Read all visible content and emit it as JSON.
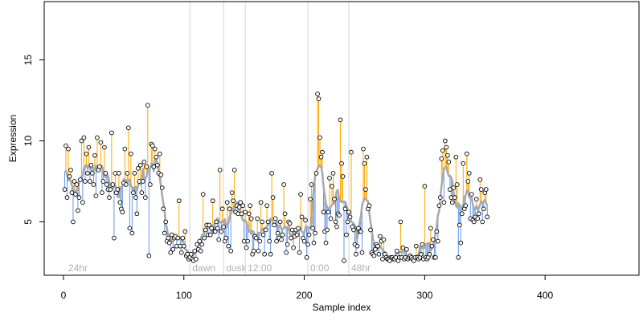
{
  "chart_data": {
    "type": "scatter",
    "title": "",
    "xlabel": "Sample index",
    "ylabel": "Expression",
    "xlim": [
      -16,
      478
    ],
    "ylim": [
      1.7,
      18.6
    ],
    "x_ticks": [
      0,
      100,
      200,
      300,
      400
    ],
    "y_ticks": [
      5,
      10,
      15
    ],
    "grid": false,
    "legend": "none",
    "phase_markers": [
      {
        "x": 2,
        "label": "24hr"
      },
      {
        "x": 105,
        "label": "dawn"
      },
      {
        "x": 133,
        "label": "dusk"
      },
      {
        "x": 151,
        "label": "12:00"
      },
      {
        "x": 203,
        "label": "0:00"
      },
      {
        "x": 237,
        "label": "48hr"
      }
    ],
    "colors": {
      "points": "#000000",
      "fitted_line": "#a9a9a9",
      "residual_above": "#ffa500",
      "residual_below": "#6495ed",
      "phase_line": "#d3d3d3",
      "phase_label": "#b0b0b0"
    },
    "series": [
      {
        "name": "",
        "values": [
          7.0,
          9.7,
          6.5,
          9.5,
          7.8,
          8.2,
          6.8,
          5.0,
          7.5,
          6.7,
          7.3,
          5.7,
          6.5,
          7.6,
          10.0,
          6.2,
          10.2,
          7.5,
          9.2,
          8.0,
          9.6,
          7.5,
          8.5,
          8.0,
          7.3,
          9.1,
          6.6,
          10.2,
          8.2,
          8.4,
          9.9,
          6.8,
          7.5,
          9.6,
          8.0,
          7.3,
          7.0,
          6.5,
          7.0,
          10.5,
          7.3,
          4.0,
          8.0,
          6.8,
          7.0,
          8.0,
          6.2,
          5.8,
          5.6,
          7.4,
          9.5,
          7.3,
          8.0,
          10.8,
          4.6,
          9.2,
          4.3,
          6.8,
          8.0,
          6.5,
          5.5,
          8.3,
          7.5,
          8.5,
          6.8,
          7.5,
          8.7,
          6.5,
          8.4,
          12.2,
          2.9,
          7.3,
          9.8,
          9.7,
          8.4,
          9.5,
          9.0,
          8.5,
          8.0,
          9.2,
          7.9,
          7.1,
          5.8,
          4.3,
          5.0,
          3.8,
          4.0,
          3.7,
          3.1,
          4.2,
          3.3,
          4.0,
          4.1,
          3.5,
          4.0,
          6.3,
          3.5,
          3.1,
          4.0,
          3.5,
          4.4,
          2.9,
          3.0,
          2.7,
          2.8,
          3.0,
          2.7,
          2.6,
          3.2,
          2.7,
          3.6,
          3.3,
          3.8,
          3.2,
          3.6,
          6.7,
          4.0,
          4.5,
          4.8,
          4.2,
          4.8,
          4.2,
          4.6,
          6.3,
          4.4,
          4.4,
          5.0,
          4.6,
          3.9,
          8.2,
          4.4,
          5.8,
          4.7,
          3.8,
          4.0,
          6.2,
          3.5,
          5.8,
          3.2,
          6.8,
          6.3,
          8.2,
          5.6,
          6.0,
          5.5,
          5.9,
          6.2,
          5.5,
          6.0,
          3.8,
          5.6,
          3.4,
          3.8,
          5.5,
          6.0,
          5.2,
          3.0,
          3.2,
          4.1,
          4.0,
          5.2,
          3.2,
          3.8,
          6.2,
          5.0,
          4.2,
          3.0,
          4.5,
          6.0,
          5.0,
          3.8,
          3.0,
          8.0,
          6.5,
          4.8,
          5.2,
          3.8,
          4.3,
          4.0,
          5.0,
          3.9,
          4.2,
          7.3,
          5.5,
          3.1,
          3.6,
          5.0,
          4.9,
          4.0,
          4.5,
          3.4,
          4.1,
          4.5,
          4.2,
          4.6,
          3.1,
          6.7,
          5.3,
          4.0,
          3.8,
          5.1,
          2.8,
          3.6,
          4.2,
          6.4,
          7.3,
          4.6,
          3.7,
          4.3,
          8.0,
          12.9,
          12.6,
          10.2,
          9.0,
          9.3,
          5.6,
          4.4,
          3.7,
          4.5,
          5.6,
          7.7,
          5.2,
          7.2,
          8.0,
          6.4,
          5.0,
          4.7,
          5.5,
          5.4,
          11.3,
          8.6,
          7.8,
          2.6,
          5.8,
          4.2,
          5.0,
          5.6,
          5.3,
          9.3,
          4.7,
          4.5,
          3.6,
          3.0,
          3.5,
          4.6,
          4.4,
          4.4,
          3.1,
          9.5,
          8.6,
          7.0,
          9.0,
          5.8,
          6.0,
          4.5,
          3.1,
          3.0,
          2.9,
          3.3,
          3.6,
          3.5,
          3.0,
          4.1,
          3.8,
          2.7,
          3.9,
          3.0,
          2.8,
          2.7,
          2.7,
          2.6,
          2.8,
          2.8,
          2.7,
          2.7,
          2.8,
          3.2,
          2.6,
          2.8,
          5.0,
          2.8,
          3.4,
          2.7,
          2.8,
          3.3,
          2.7,
          2.8,
          2.9,
          2.8,
          2.7,
          2.6,
          2.8,
          3.5,
          2.8,
          2.7,
          2.8,
          3.0,
          3.6,
          2.7,
          7.2,
          2.8,
          2.7,
          2.8,
          3.0,
          4.6,
          3.5,
          3.9,
          2.8,
          2.8,
          4.4,
          3.8,
          6.0,
          6.5,
          8.9,
          9.4,
          6.2,
          10.0,
          9.6,
          9.1,
          8.7,
          7.0,
          6.5,
          6.2,
          7.1,
          6.5,
          9.0,
          7.3,
          2.8,
          4.8,
          3.7,
          5.5,
          8.6,
          5.8,
          6.0,
          9.2,
          7.5,
          8.0,
          5.2,
          6.7,
          5.1,
          5.0,
          5.3,
          6.4,
          5.2,
          5.5,
          7.6,
          7.0,
          5.0,
          5.8,
          6.8,
          7.0,
          5.3
        ]
      }
    ]
  }
}
